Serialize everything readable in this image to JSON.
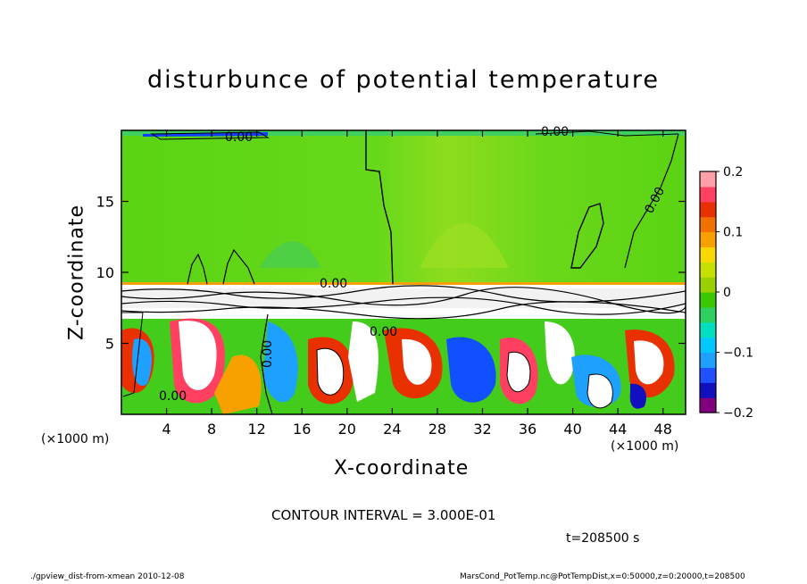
{
  "chart_data": {
    "type": "heatmap",
    "title": "disturbunce of potential temperature",
    "xlabel": "X-coordinate",
    "ylabel": "Z-coordinate",
    "x_unit_labels": [
      "(×1000 m)",
      "(×1000 m)"
    ],
    "xlim": [
      0,
      50
    ],
    "ylim": [
      0,
      20
    ],
    "xticks": [
      4,
      8,
      12,
      16,
      20,
      24,
      28,
      32,
      36,
      40,
      44,
      48
    ],
    "yticks": [
      5,
      10,
      15
    ],
    "colorbar": {
      "min": -0.2,
      "max": 0.2,
      "ticks": [
        0.2,
        0.1,
        0,
        -0.1,
        -0.2
      ],
      "tick_labels": [
        "0.2",
        "0.1",
        "0",
        "−0.1",
        "−0.2"
      ],
      "colors": [
        "#800080",
        "#1010c0",
        "#2050ff",
        "#1ea0ff",
        "#00c8ff",
        "#00e0c0",
        "#30d060",
        "#3cc800",
        "#9ad000",
        "#c8e000",
        "#f8d800",
        "#f8a000",
        "#f07000",
        "#e83000",
        "#ff4060",
        "#ffa0a8"
      ]
    },
    "contour_labels": [
      "0.00",
      "0.00",
      "0.00",
      "0.00",
      "0.00",
      "0.00",
      "0.00"
    ],
    "contour_interval": "CONTOUR INTERVAL = 3.000E-01",
    "time": "t=208500 s"
  },
  "footer": {
    "left": "./gpview_dist-from-xmean  2010-12-08",
    "right": "MarsCond_PotTemp.nc@PotTempDist,x=0:50000,z=0:20000,t=208500"
  }
}
